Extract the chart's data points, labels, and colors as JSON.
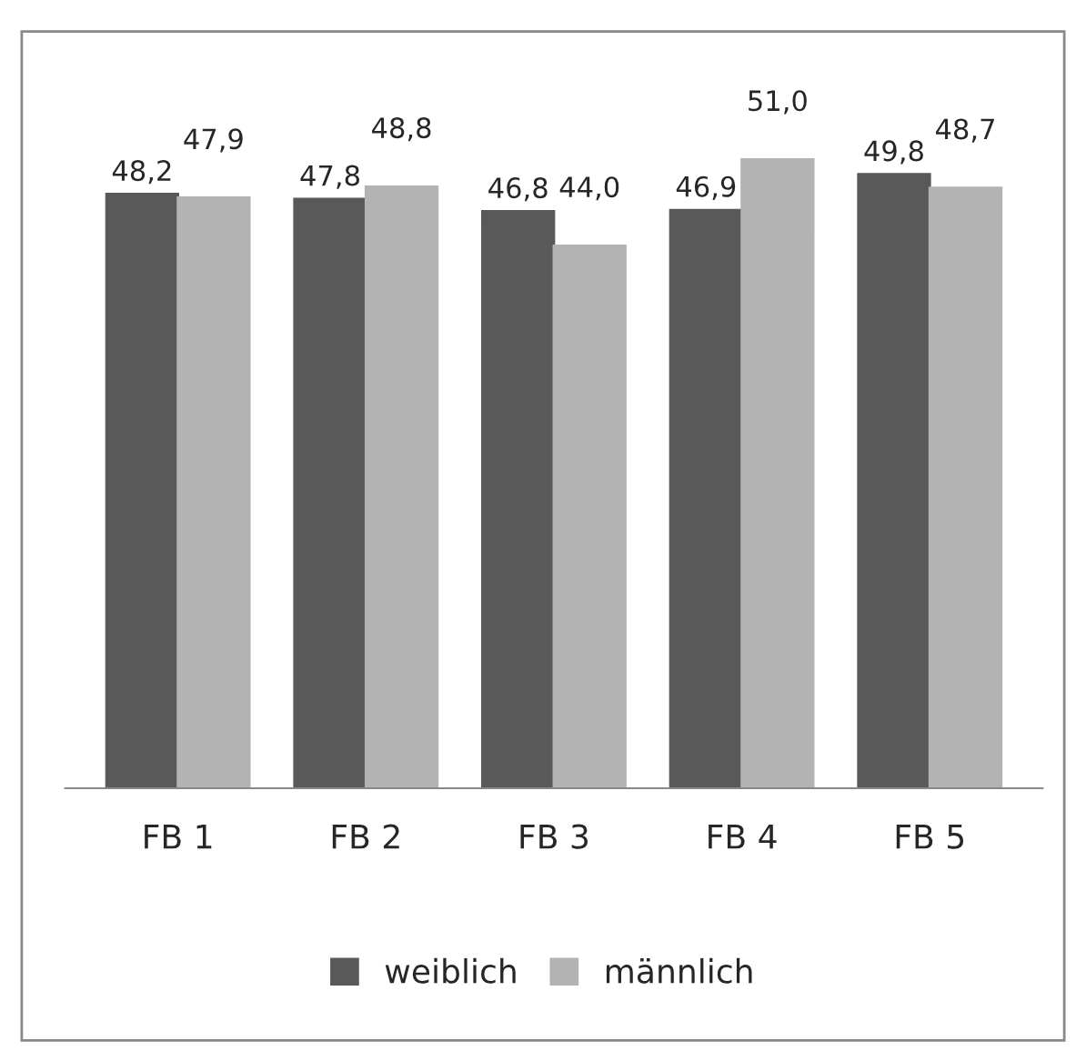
{
  "chart_data": {
    "type": "bar",
    "categories": [
      "FB 1",
      "FB 2",
      "FB 3",
      "FB 4",
      "FB 5"
    ],
    "series": [
      {
        "name": "weiblich",
        "color": "#595959",
        "values": [
          48.2,
          47.8,
          46.8,
          46.9,
          49.8
        ],
        "value_labels": [
          "48,2",
          "47,8",
          "46,8",
          "46,9",
          "49,8"
        ]
      },
      {
        "name": "männlich",
        "color": "#b3b3b3",
        "values": [
          47.9,
          48.8,
          44.0,
          51.0,
          48.7
        ],
        "value_labels": [
          "47,9",
          "48,8",
          "44,0",
          "51,0",
          "48,7"
        ]
      }
    ],
    "grid": false,
    "legend": "bottom",
    "tick_labels": "x"
  }
}
